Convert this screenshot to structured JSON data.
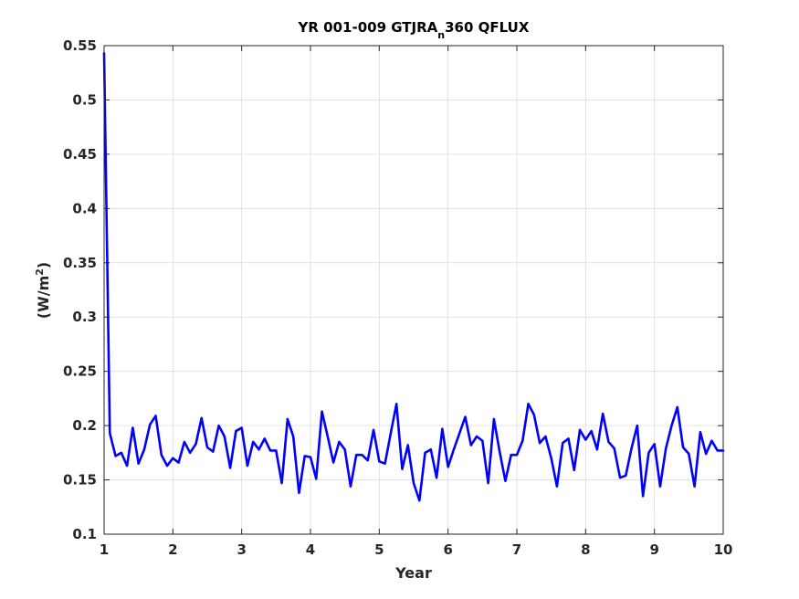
{
  "chart_data": {
    "type": "line",
    "title": {
      "main": "YR 001-009 GTJRA",
      "sub": "n",
      "rest": "360 QFLUX"
    },
    "xlabel": "Year",
    "ylabel": {
      "prefix": "(W/m",
      "sup": "2",
      "suffix": ")"
    },
    "xlim": [
      1,
      10
    ],
    "ylim": [
      0.1,
      0.55
    ],
    "xticks": [
      1,
      2,
      3,
      4,
      5,
      6,
      7,
      8,
      9,
      10
    ],
    "xtick_labels": [
      "1",
      "2",
      "3",
      "4",
      "5",
      "6",
      "7",
      "8",
      "9",
      "10"
    ],
    "yticks": [
      0.1,
      0.15,
      0.2,
      0.25,
      0.3,
      0.35,
      0.4,
      0.45,
      0.5,
      0.55
    ],
    "ytick_labels": [
      "0.1",
      "0.15",
      "0.2",
      "0.25",
      "0.3",
      "0.35",
      "0.4",
      "0.45",
      "0.5",
      "0.55"
    ],
    "grid": true,
    "series": [
      {
        "color": "#0000ff",
        "x": [
          1.0,
          1.0833,
          1.1667,
          1.25,
          1.3333,
          1.4167,
          1.5,
          1.5833,
          1.6667,
          1.75,
          1.8333,
          1.9167,
          2.0,
          2.0833,
          2.1667,
          2.25,
          2.3333,
          2.4167,
          2.5,
          2.5833,
          2.6667,
          2.75,
          2.8333,
          2.9167,
          3.0,
          3.0833,
          3.1667,
          3.25,
          3.3333,
          3.4167,
          3.5,
          3.5833,
          3.6667,
          3.75,
          3.8333,
          3.9167,
          4.0,
          4.0833,
          4.1667,
          4.25,
          4.3333,
          4.4167,
          4.5,
          4.5833,
          4.6667,
          4.75,
          4.8333,
          4.9167,
          5.0,
          5.0833,
          5.1667,
          5.25,
          5.3333,
          5.4167,
          5.5,
          5.5833,
          5.6667,
          5.75,
          5.8333,
          5.9167,
          6.0,
          6.0833,
          6.1667,
          6.25,
          6.3333,
          6.4167,
          6.5,
          6.5833,
          6.6667,
          6.75,
          6.8333,
          6.9167,
          7.0,
          7.0833,
          7.1667,
          7.25,
          7.3333,
          7.4167,
          7.5,
          7.5833,
          7.6667,
          7.75,
          7.8333,
          7.9167,
          8.0,
          8.0833,
          8.1667,
          8.25,
          8.3333,
          8.4167,
          8.5,
          8.5833,
          8.6667,
          8.75,
          8.8333,
          8.9167,
          9.0,
          9.0833,
          9.1667,
          9.25,
          9.3333,
          9.4167,
          9.5,
          9.5833,
          9.6667,
          9.75,
          9.8333,
          9.9167,
          10.0
        ],
        "values": [
          0.543,
          0.193,
          0.172,
          0.175,
          0.163,
          0.198,
          0.165,
          0.178,
          0.201,
          0.209,
          0.173,
          0.163,
          0.17,
          0.166,
          0.185,
          0.175,
          0.183,
          0.207,
          0.18,
          0.176,
          0.2,
          0.19,
          0.161,
          0.195,
          0.198,
          0.163,
          0.185,
          0.178,
          0.188,
          0.177,
          0.177,
          0.147,
          0.206,
          0.19,
          0.138,
          0.172,
          0.171,
          0.151,
          0.213,
          0.19,
          0.166,
          0.185,
          0.178,
          0.144,
          0.173,
          0.173,
          0.168,
          0.196,
          0.167,
          0.165,
          0.193,
          0.22,
          0.16,
          0.182,
          0.147,
          0.131,
          0.175,
          0.178,
          0.152,
          0.197,
          0.162,
          0.178,
          0.193,
          0.208,
          0.182,
          0.19,
          0.186,
          0.147,
          0.206,
          0.176,
          0.149,
          0.173,
          0.173,
          0.186,
          0.22,
          0.21,
          0.184,
          0.19,
          0.17,
          0.144,
          0.184,
          0.188,
          0.159,
          0.196,
          0.187,
          0.195,
          0.178,
          0.211,
          0.185,
          0.179,
          0.152,
          0.154,
          0.179,
          0.2,
          0.135,
          0.175,
          0.183,
          0.144,
          0.179,
          0.2,
          0.217,
          0.18,
          0.174,
          0.144,
          0.194,
          0.174,
          0.186,
          0.177,
          0.177
        ]
      }
    ]
  }
}
